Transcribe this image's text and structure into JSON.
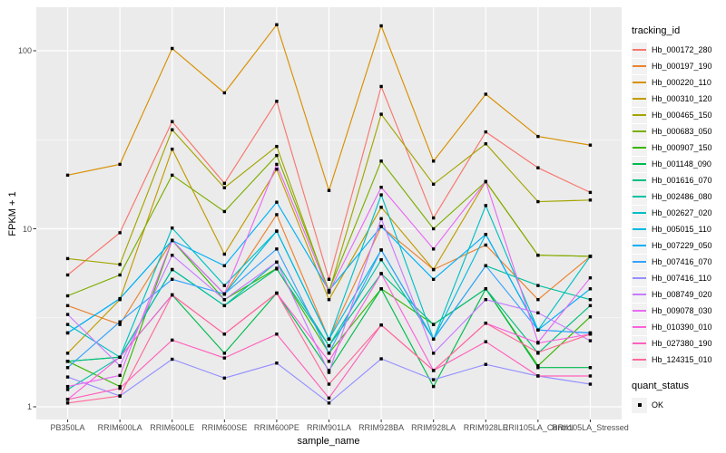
{
  "chart_data": {
    "type": "line",
    "title": "",
    "xlabel": "sample_name",
    "ylabel": "FPKM + 1",
    "y_scale": "log10",
    "ylim": [
      0.85,
      176
    ],
    "y_tick_labels": [
      "1",
      "10",
      "100"
    ],
    "y_tick_values": [
      1,
      10,
      100
    ],
    "y_minor_values": [
      3.1623,
      31.623
    ],
    "grid": "on",
    "legend_position": "right",
    "point_marker": "black-square",
    "categories": [
      "PB350LA",
      "RRIM600LA",
      "RRIM600LE",
      "RRIM600SE",
      "RRIM600PE",
      "RRIM901LA",
      "RRIM928BA",
      "RRIM928LA",
      "RRIM928LE",
      "RRII105LA_Control",
      "RRII105LA_Stressed"
    ],
    "legend": {
      "title": "tracking_id"
    },
    "legend2": {
      "title": "quant_status",
      "items": [
        {
          "label": "OK"
        }
      ]
    },
    "style": {
      "panel_bg": "#EBEBEB",
      "grid_major": "#FFFFFF",
      "grid_minor": "#F7F7F7",
      "tick_mark": "#333333",
      "tick_label": "#4D4D4D",
      "marker": "#000000"
    },
    "series": [
      {
        "name": "Hb_000172_280",
        "color": "#F8766D",
        "values": [
          5.5,
          9.5,
          40,
          18,
          52,
          5.2,
          63,
          11.5,
          35,
          22,
          16
        ]
      },
      {
        "name": "Hb_000197_190",
        "color": "#EA8331",
        "values": [
          3.7,
          2.9,
          8.6,
          4.3,
          12,
          2.4,
          10.3,
          5.9,
          8.1,
          4.0,
          7.0
        ]
      },
      {
        "name": "Hb_000220_110",
        "color": "#D89000",
        "values": [
          20,
          23,
          103,
          58,
          140,
          16.4,
          138,
          24,
          57,
          33,
          29.5
        ]
      },
      {
        "name": "Hb_000310_120",
        "color": "#C09B00",
        "values": [
          2.0,
          4.0,
          28,
          7.2,
          21.6,
          4.0,
          13.2,
          5.9,
          18.4,
          7.1,
          7.0
        ]
      },
      {
        "name": "Hb_000465_150",
        "color": "#A3A500",
        "values": [
          6.8,
          6.3,
          36,
          17,
          29,
          4.4,
          44,
          17.8,
          30,
          14.2,
          14.5
        ]
      },
      {
        "name": "Hb_000683_050",
        "color": "#7CAE00",
        "values": [
          4.2,
          5.5,
          20,
          12.5,
          25.8,
          4.5,
          24,
          10,
          18.4,
          7.1,
          7.0
        ]
      },
      {
        "name": "Hb_000907_150",
        "color": "#39B600",
        "values": [
          1.8,
          1.3,
          8.6,
          4.0,
          6.0,
          2.0,
          4.6,
          2.9,
          4.6,
          1.7,
          3.2
        ]
      },
      {
        "name": "Hb_001148_090",
        "color": "#00BB4E",
        "values": [
          1.8,
          1.9,
          4.25,
          2.0,
          4.35,
          1.6,
          4.6,
          1.3,
          4.6,
          1.66,
          1.66
        ]
      },
      {
        "name": "Hb_001616_070",
        "color": "#00BF7D",
        "values": [
          1.8,
          1.9,
          5.9,
          3.7,
          5.95,
          2.2,
          5.6,
          2.9,
          4.6,
          2.0,
          3.7
        ]
      },
      {
        "name": "Hb_002486_080",
        "color": "#00C1A3",
        "values": [
          1.25,
          1.9,
          5.9,
          3.7,
          6.5,
          2.2,
          6.7,
          2.4,
          6.2,
          4.8,
          4.0
        ]
      },
      {
        "name": "Hb_002627_020",
        "color": "#00BFC4",
        "values": [
          2.9,
          1.9,
          10.1,
          4.8,
          9.7,
          2.4,
          15.5,
          2.4,
          13.5,
          2.7,
          7.0
        ]
      },
      {
        "name": "Hb_005015_110",
        "color": "#00BAE0",
        "values": [
          2.6,
          4.05,
          8.6,
          4.3,
          9.7,
          2.4,
          7.6,
          2.4,
          9.3,
          2.7,
          2.6
        ]
      },
      {
        "name": "Hb_007229_050",
        "color": "#00B0F6",
        "values": [
          2.6,
          4.05,
          8.6,
          6.2,
          14.1,
          4.5,
          10.3,
          5.2,
          9.3,
          2.7,
          4.6
        ]
      },
      {
        "name": "Hb_007416_070",
        "color": "#35A2FF",
        "values": [
          1.66,
          3.0,
          5.2,
          4.3,
          7.7,
          2.0,
          7.6,
          2.4,
          6.2,
          2.7,
          2.6
        ]
      },
      {
        "name": "Hb_007416_110",
        "color": "#9590FF",
        "values": [
          1.47,
          1.15,
          1.85,
          1.45,
          1.76,
          1.05,
          1.86,
          1.42,
          1.73,
          1.49,
          1.34
        ]
      },
      {
        "name": "Hb_008749_020",
        "color": "#C77CFF",
        "values": [
          3.3,
          1.7,
          7.1,
          4.0,
          6.5,
          1.56,
          11.4,
          2.0,
          4.0,
          3.37,
          2.35
        ]
      },
      {
        "name": "Hb_009078_030",
        "color": "#E76BF3",
        "values": [
          1.3,
          1.5,
          8.6,
          4.3,
          23,
          4.4,
          17.1,
          7.7,
          18.4,
          2.3,
          5.3
        ]
      },
      {
        "name": "Hb_010390_010",
        "color": "#FA62DB",
        "values": [
          1.1,
          1.9,
          4.25,
          2.56,
          4.35,
          1.8,
          5.6,
          1.6,
          2.95,
          2.28,
          2.56
        ]
      },
      {
        "name": "Hb_027380_190",
        "color": "#FF62BC",
        "values": [
          1.1,
          1.27,
          2.37,
          1.88,
          2.56,
          1.12,
          2.88,
          1.6,
          2.32,
          1.49,
          1.49
        ]
      },
      {
        "name": "Hb_124315_010",
        "color": "#FF6A98",
        "values": [
          1.05,
          1.15,
          4.25,
          2.56,
          4.35,
          1.34,
          2.88,
          1.6,
          2.95,
          2.02,
          2.56
        ]
      }
    ]
  }
}
